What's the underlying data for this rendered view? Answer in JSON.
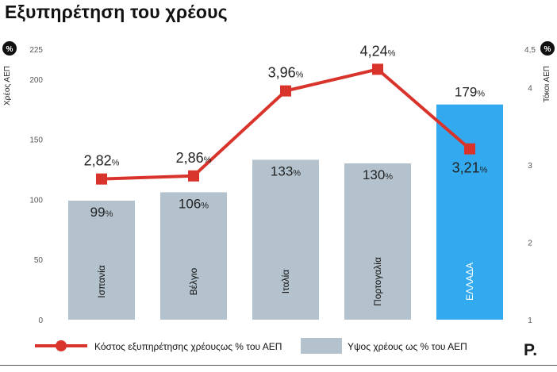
{
  "header": {
    "title": "Εξυπηρέτηση του χρέους"
  },
  "axes": {
    "left_badge": "%",
    "right_badge": "%",
    "left_label": "Χρέος ΑΕΠ",
    "right_label": "Τόκοι ΑΕΠ",
    "left_ticks": [
      "225",
      "200",
      "150",
      "100",
      "50",
      "0"
    ],
    "right_ticks": [
      "4,5",
      "4",
      "3",
      "2",
      "1"
    ]
  },
  "legend": {
    "line_label": "Κόστος εξυπηρέτησης χρέουςως % του ΑΕΠ",
    "bar_label": "Υψος χρέους ως % του ΑΕΠ"
  },
  "logo": {
    "text": "P."
  },
  "colors": {
    "bar": "#b3c2cc",
    "bar_highlight": "#33aaf0",
    "line": "#d9342b",
    "badge": "#111111"
  },
  "chart_data": {
    "type": "bar",
    "categories": [
      "Ισπανία",
      "Βέλγιο",
      "Ιταλία",
      "Πορτογαλία",
      "ΕΛΛΑΔΑ"
    ],
    "highlight_category": "ΕΛΛΑΔΑ",
    "series": [
      {
        "name": "Υψος χρέους ως % του ΑΕΠ",
        "type": "bar",
        "axis": "left",
        "values": [
          99,
          106,
          133,
          130,
          179
        ],
        "labels": [
          "99",
          "106",
          "133",
          "130",
          "179"
        ]
      },
      {
        "name": "Κόστος εξυπηρέτησης χρέουςως % του ΑΕΠ",
        "type": "line",
        "axis": "right",
        "values": [
          2.82,
          2.86,
          3.96,
          4.24,
          3.21
        ],
        "labels": [
          "2,82",
          "2,86",
          "3,96",
          "4,24",
          "3,21"
        ]
      }
    ],
    "value_suffix": "%",
    "ylabel_left": "Χρέος ΑΕΠ",
    "ylim_left": [
      0,
      225
    ],
    "ylabel_right": "Τόκοι ΑΕΠ",
    "ylim_right": [
      1,
      4.5
    ],
    "grid": false
  }
}
